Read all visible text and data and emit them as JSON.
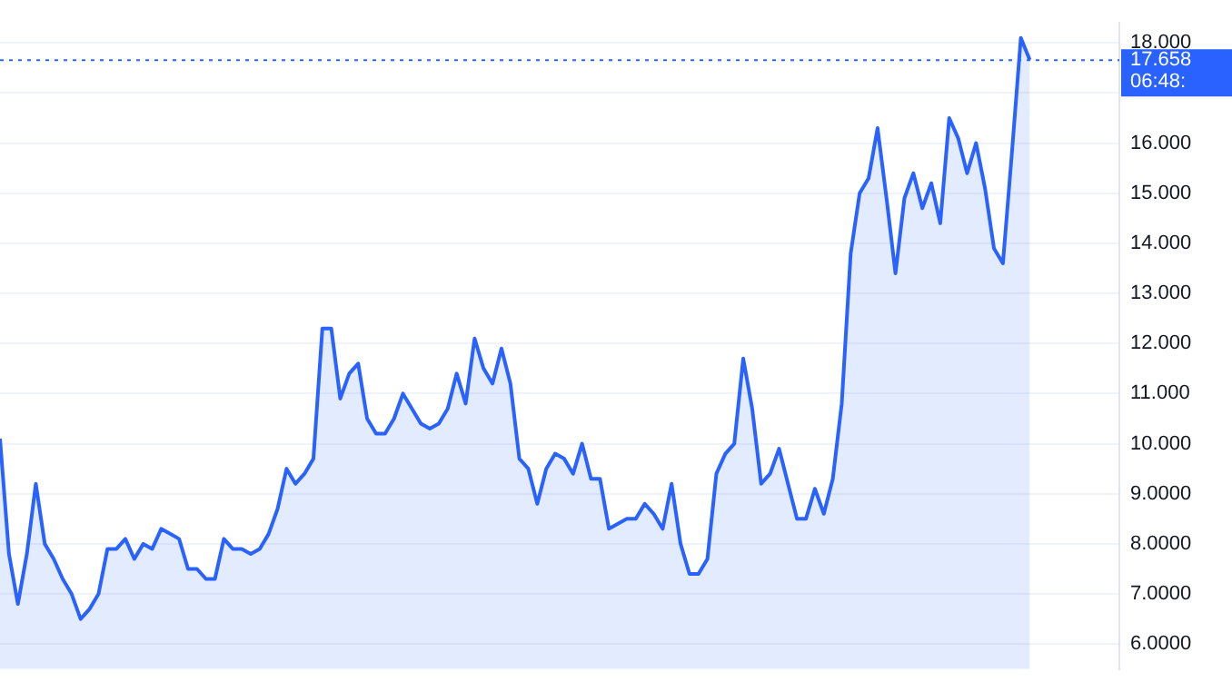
{
  "chart_data": {
    "type": "area",
    "categories": [
      null,
      null,
      null,
      null,
      null,
      null,
      null,
      null,
      null,
      null,
      null,
      null,
      null,
      null,
      null,
      null,
      null,
      null,
      null,
      null,
      null,
      null,
      null,
      null,
      null,
      null,
      null,
      null,
      null,
      null,
      null,
      null,
      null,
      null,
      null,
      null,
      null,
      null,
      null,
      null,
      null,
      null,
      null,
      null,
      null,
      null,
      null,
      null,
      null,
      null,
      null,
      null,
      null,
      null,
      null,
      null,
      null,
      null,
      null,
      null,
      null,
      null,
      null,
      null,
      null,
      null,
      null,
      null,
      null,
      null,
      null,
      null,
      null,
      null,
      null,
      null,
      null,
      null,
      null,
      null,
      null,
      null,
      null,
      null,
      null,
      null,
      null,
      null,
      null,
      null,
      null,
      null,
      null,
      null,
      null,
      null,
      null,
      null,
      null,
      null,
      null,
      null,
      null,
      null,
      null,
      null,
      null,
      null,
      null,
      null,
      null,
      null,
      null,
      null,
      null,
      null,
      null,
      null,
      null,
      null,
      null,
      null,
      null,
      null,
      null,
      null
    ],
    "series": [
      {
        "color": "#2962ff",
        "values": [
          10.1,
          7.8,
          6.8,
          7.8,
          9.2,
          8.0,
          7.7,
          7.3,
          7.0,
          6.5,
          6.7,
          7.0,
          7.9,
          7.9,
          8.1,
          7.7,
          8.0,
          7.9,
          8.3,
          8.2,
          8.1,
          7.5,
          7.5,
          7.3,
          7.3,
          8.1,
          7.9,
          7.9,
          7.8,
          7.9,
          8.2,
          8.7,
          9.5,
          9.2,
          9.4,
          9.7,
          12.3,
          12.3,
          10.9,
          11.4,
          11.6,
          10.5,
          10.2,
          10.2,
          10.5,
          11.0,
          10.7,
          10.4,
          10.3,
          10.4,
          10.7,
          11.4,
          10.8,
          12.1,
          11.5,
          11.2,
          11.9,
          11.2,
          9.7,
          9.5,
          8.8,
          9.5,
          9.8,
          9.7,
          9.4,
          10.0,
          9.3,
          9.3,
          8.3,
          8.4,
          8.5,
          8.5,
          8.8,
          8.6,
          8.3,
          9.2,
          8.0,
          7.4,
          7.4,
          7.7,
          9.4,
          9.8,
          10.0,
          11.7,
          10.7,
          9.2,
          9.4,
          9.9,
          9.2,
          8.5,
          8.5,
          9.1,
          8.6,
          9.3,
          10.8,
          13.8,
          15.0,
          15.3,
          16.3,
          14.9,
          13.4,
          14.9,
          15.4,
          14.7,
          15.2,
          14.4,
          16.5,
          16.1,
          15.4,
          16.0,
          15.1,
          13.9,
          13.6,
          15.8,
          18.1,
          17.66,
          null,
          null,
          null,
          null,
          null,
          null,
          null,
          null,
          null,
          null
        ]
      }
    ],
    "ylim": [
      5.5,
      18.4
    ],
    "yticks": [
      {
        "value": 6,
        "label": "6.0000"
      },
      {
        "value": 7,
        "label": "7.0000"
      },
      {
        "value": 8,
        "label": "8.0000"
      },
      {
        "value": 9,
        "label": "9.0000"
      },
      {
        "value": 10,
        "label": "10.000"
      },
      {
        "value": 11,
        "label": "11.000"
      },
      {
        "value": 12,
        "label": "12.000"
      },
      {
        "value": 13,
        "label": "13.000"
      },
      {
        "value": 14,
        "label": "14.000"
      },
      {
        "value": 15,
        "label": "15.000"
      },
      {
        "value": 16,
        "label": "16.000"
      },
      {
        "value": 17,
        "label": null
      },
      {
        "value": 18,
        "label": "18.000"
      }
    ],
    "ref_lines": [
      {
        "axis": "y",
        "value": 17.658,
        "label": "17.658",
        "color": "#2962ff",
        "line_style": "dotted"
      }
    ],
    "annotations": [
      "06:48:"
    ],
    "grid": "y",
    "legend": false,
    "tick_labels": "y"
  }
}
